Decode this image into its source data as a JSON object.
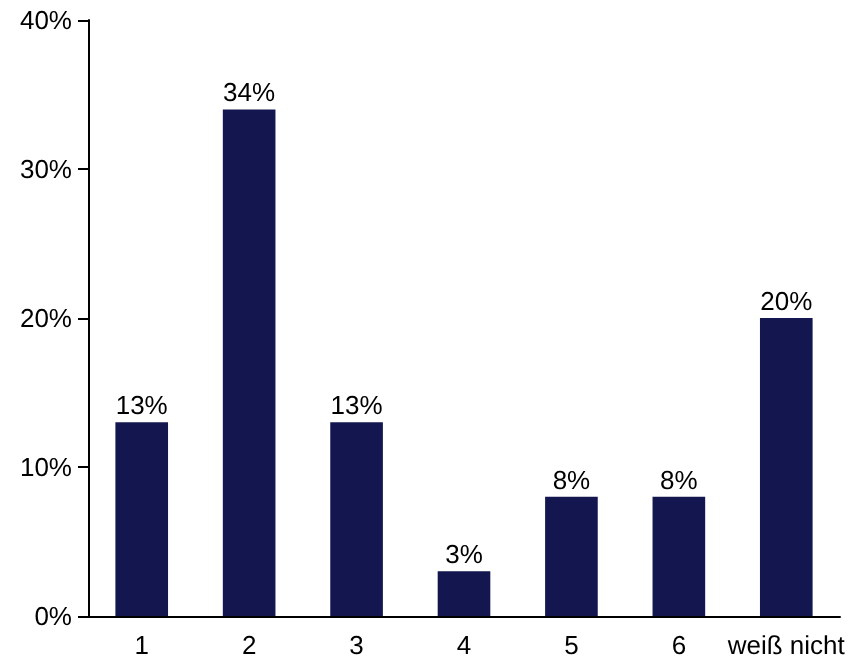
{
  "chart_data": {
    "type": "bar",
    "categories": [
      "1",
      "2",
      "3",
      "4",
      "5",
      "6",
      "weiß nicht"
    ],
    "values": [
      13,
      34,
      13,
      3,
      8,
      8,
      20
    ],
    "value_labels": [
      "13%",
      "34%",
      "13%",
      "3%",
      "8%",
      "8%",
      "20%"
    ],
    "color": "#14174f",
    "ylim": [
      0,
      40
    ],
    "yticks": [
      {
        "value": 0,
        "label": "0%"
      },
      {
        "value": 10,
        "label": "10%"
      },
      {
        "value": 20,
        "label": "20%"
      },
      {
        "value": 30,
        "label": "30%"
      },
      {
        "value": 40,
        "label": "40%"
      }
    ]
  }
}
